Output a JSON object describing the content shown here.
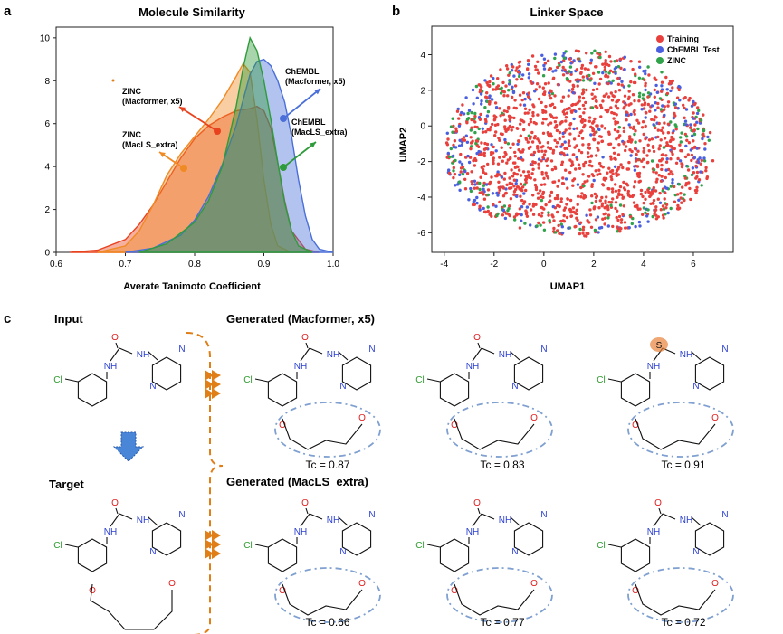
{
  "panels": {
    "a": "a",
    "b": "b",
    "c": "c"
  },
  "chart_data": [
    {
      "type": "area",
      "title": "Molecule Similarity",
      "xlabel": "Averate Tanimoto Coefficient",
      "ylabel": "",
      "xlim": [
        0.6,
        1.0
      ],
      "ylim": [
        0,
        10.5
      ],
      "xticks": [
        "0.6",
        "0.7",
        "0.8",
        "0.9",
        "1.0"
      ],
      "yticks": [
        "0",
        "2",
        "4",
        "6",
        "8",
        "10"
      ],
      "series": [
        {
          "name": "ZINC (Macformer, x5)",
          "color": "#e8421f",
          "x": [
            0.62,
            0.66,
            0.7,
            0.72,
            0.74,
            0.76,
            0.78,
            0.8,
            0.82,
            0.84,
            0.86,
            0.88,
            0.89,
            0.9,
            0.91,
            0.92,
            0.93,
            0.94,
            0.96,
            0.98
          ],
          "y": [
            0,
            0.1,
            0.6,
            1.3,
            2.2,
            3.3,
            4.4,
            5.3,
            5.9,
            6.3,
            6.6,
            6.7,
            6.8,
            6.6,
            5.8,
            4.2,
            2.4,
            1.0,
            0.15,
            0
          ]
        },
        {
          "name": "ZINC (MacLS_extra)",
          "color": "#f08a24",
          "x": [
            0.66,
            0.7,
            0.72,
            0.74,
            0.76,
            0.78,
            0.8,
            0.82,
            0.84,
            0.86,
            0.87,
            0.88,
            0.89,
            0.9,
            0.91,
            0.92,
            0.94
          ],
          "y": [
            0,
            0.3,
            1.0,
            2.2,
            3.6,
            4.6,
            5.4,
            6.2,
            7.1,
            8.2,
            8.8,
            8.4,
            6.2,
            3.4,
            1.3,
            0.3,
            0
          ]
        },
        {
          "name": "ChEMBL (Macformer, x5)",
          "color": "#4a6fd8",
          "x": [
            0.7,
            0.74,
            0.78,
            0.8,
            0.82,
            0.84,
            0.86,
            0.88,
            0.89,
            0.9,
            0.91,
            0.92,
            0.93,
            0.94,
            0.95,
            0.96,
            0.97,
            0.98,
            1.0
          ],
          "y": [
            0,
            0.2,
            0.8,
            1.5,
            2.6,
            4.1,
            5.9,
            8.3,
            8.9,
            9.0,
            8.7,
            8.0,
            7.0,
            5.4,
            3.4,
            1.7,
            0.6,
            0.15,
            0
          ]
        },
        {
          "name": "ChEMBL (MacLS_extra)",
          "color": "#2f9b3a",
          "x": [
            0.72,
            0.76,
            0.8,
            0.82,
            0.84,
            0.86,
            0.87,
            0.88,
            0.89,
            0.9,
            0.91,
            0.92,
            0.93,
            0.94,
            0.95,
            0.97
          ],
          "y": [
            0,
            0.4,
            1.4,
            2.4,
            4.0,
            6.8,
            8.6,
            10.0,
            9.4,
            8.0,
            6.2,
            4.2,
            2.3,
            1.0,
            0.3,
            0
          ]
        }
      ],
      "annotations": [
        {
          "text": [
            "ZINC",
            "(Macformer, x5)"
          ],
          "color": "#e8421f"
        },
        {
          "text": [
            "ZINC",
            "(MacLS_extra)"
          ],
          "color": "#f08a24"
        },
        {
          "text": [
            "ChEMBL",
            "(Macformer, x5)"
          ],
          "color": "#4a6fd8"
        },
        {
          "text": [
            "ChEMBL",
            "(MacLS_extra)"
          ],
          "color": "#2f9b3a"
        }
      ]
    },
    {
      "type": "scatter",
      "title": "Linker Space",
      "xlabel": "UMAP1",
      "ylabel": "UMAP2",
      "xlim": [
        -4.5,
        7.6
      ],
      "ylim": [
        -7.1,
        5.6
      ],
      "xticks": [
        "-4",
        "-2",
        "0",
        "2",
        "4",
        "6"
      ],
      "yticks": [
        "-6",
        "-4",
        "-2",
        "0",
        "2",
        "4"
      ],
      "legend_position": "top-right",
      "series": [
        {
          "name": "Training",
          "color": "#e8413d"
        },
        {
          "name": "ChEMBL Test",
          "color": "#4a5fe0"
        },
        {
          "name": "ZINC",
          "color": "#2fa24a"
        }
      ]
    }
  ],
  "panel_c": {
    "input_label": "Input",
    "target_label": "Target",
    "gen_macformer_label": "Generated (Macformer, x5)",
    "gen_macls_label": "Generated (MacLS_extra)",
    "atoms": {
      "nh": "NH",
      "o": "O",
      "n": "N",
      "cl": "Cl",
      "s": "S"
    },
    "tc_values": [
      "Tc = 0.87",
      "Tc = 0.83",
      "Tc = 0.91",
      "Tc = 0.66",
      "Tc = 0.77",
      "Tc = 0.72"
    ]
  }
}
